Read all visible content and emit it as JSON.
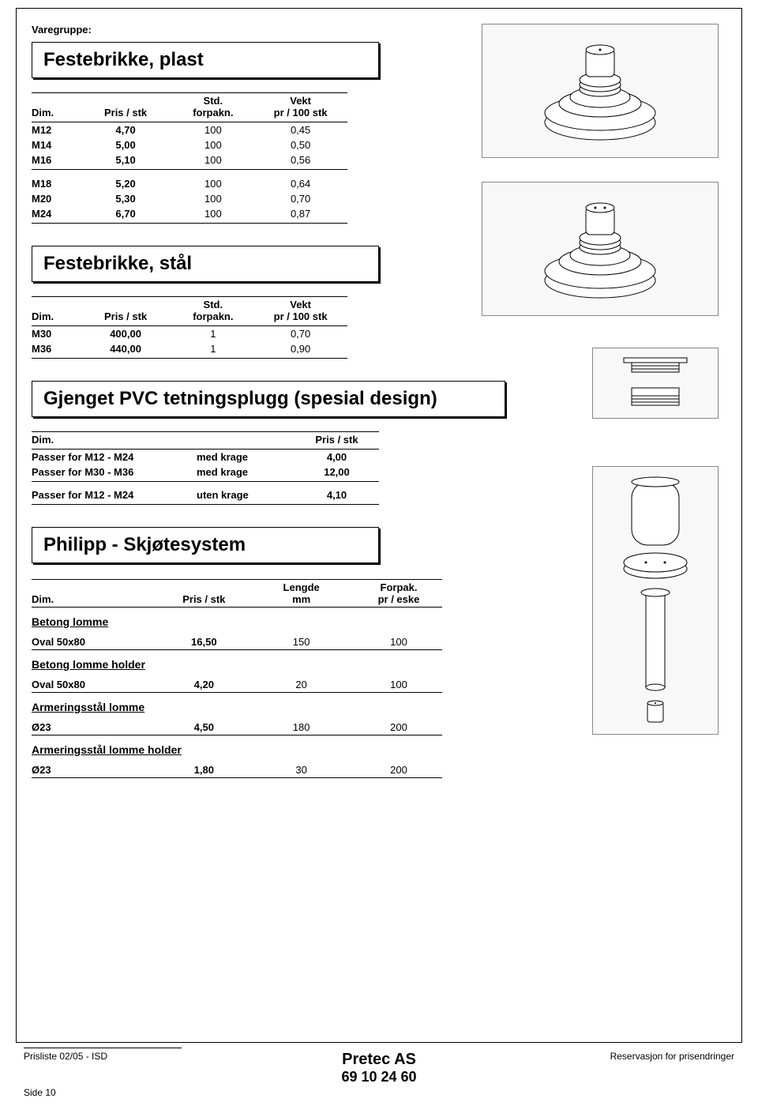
{
  "page_label": "Varegruppe:",
  "sections": {
    "s1": {
      "title": "Festebrikke, plast",
      "headers": {
        "dim": "Dim.",
        "price": "Pris / stk",
        "pack": "Std.\nforpakn.",
        "weight": "Vekt\npr / 100 stk"
      },
      "group1": [
        {
          "dim": "M12",
          "price": "4,70",
          "pack": "100",
          "weight": "0,45"
        },
        {
          "dim": "M14",
          "price": "5,00",
          "pack": "100",
          "weight": "0,50"
        },
        {
          "dim": "M16",
          "price": "5,10",
          "pack": "100",
          "weight": "0,56"
        }
      ],
      "group2": [
        {
          "dim": "M18",
          "price": "5,20",
          "pack": "100",
          "weight": "0,64"
        },
        {
          "dim": "M20",
          "price": "5,30",
          "pack": "100",
          "weight": "0,70"
        },
        {
          "dim": "M24",
          "price": "6,70",
          "pack": "100",
          "weight": "0,87"
        }
      ]
    },
    "s2": {
      "title": "Festebrikke, stål",
      "headers": {
        "dim": "Dim.",
        "price": "Pris / stk",
        "pack": "Std.\nforpakn.",
        "weight": "Vekt\npr / 100 stk"
      },
      "rows": [
        {
          "dim": "M30",
          "price": "400,00",
          "pack": "1",
          "weight": "0,70"
        },
        {
          "dim": "M36",
          "price": "440,00",
          "pack": "1",
          "weight": "0,90"
        }
      ]
    },
    "s3": {
      "title": "Gjenget PVC tetningsplugg (spesial design)",
      "headers": {
        "dim": "Dim.",
        "price": "Pris / stk"
      },
      "group1": [
        {
          "dim": "Passer for M12 - M24",
          "variant": "med krage",
          "price": "4,00"
        },
        {
          "dim": "Passer for M30 - M36",
          "variant": "med krage",
          "price": "12,00"
        }
      ],
      "group2": [
        {
          "dim": "Passer for M12 - M24",
          "variant": "uten krage",
          "price": "4,10"
        }
      ]
    },
    "s4": {
      "title": "Philipp - Skjøtesystem",
      "headers": {
        "dim": "Dim.",
        "price": "Pris / stk",
        "len": "Lengde\nmm",
        "pack": "Forpak.\npr / eske"
      },
      "groups": [
        {
          "heading": "Betong lomme",
          "rows": [
            {
              "dim": "Oval 50x80",
              "price": "16,50",
              "len": "150",
              "pack": "100"
            }
          ]
        },
        {
          "heading": "Betong lomme holder",
          "rows": [
            {
              "dim": "Oval 50x80",
              "price": "4,20",
              "len": "20",
              "pack": "100"
            }
          ]
        },
        {
          "heading": "Armeringsstål lomme",
          "rows": [
            {
              "dim": "Ø23",
              "price": "4,50",
              "len": "180",
              "pack": "200"
            }
          ]
        },
        {
          "heading": "Armeringsstål lomme holder",
          "rows": [
            {
              "dim": "Ø23",
              "price": "1,80",
              "len": "30",
              "pack": "200"
            }
          ]
        }
      ]
    }
  },
  "footer": {
    "left": "Prisliste 02/05 - ISD",
    "right": "Reservasjon for prisendringer",
    "company": "Pretec AS",
    "phone": "69 10 24 60",
    "side": "Side 10"
  }
}
